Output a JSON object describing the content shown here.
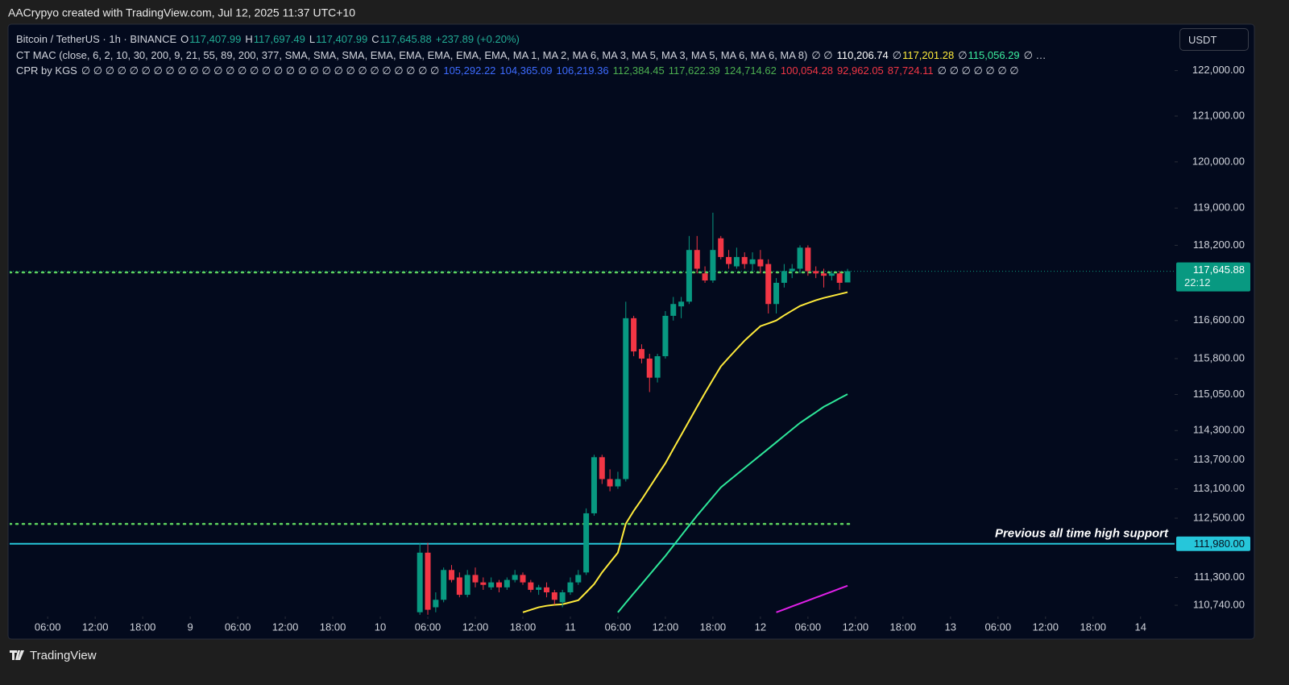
{
  "chart_data": {
    "type": "candlestick",
    "credit": "AACrypyo created with TradingView.com, Jul 12, 2025 11:37 UTC+10",
    "currency": "USDT",
    "brand": "TradingView",
    "legend": [
      {
        "items": [
          {
            "text": "Bitcoin / TetherUS · 1h · BINANCE",
            "color": "#d1d4dc"
          },
          {
            "text": "O",
            "color": "#d1d4dc"
          },
          {
            "text": "117,407.99",
            "color": "#22ab94"
          },
          {
            "text": "H",
            "color": "#d1d4dc"
          },
          {
            "text": "117,697.49",
            "color": "#22ab94"
          },
          {
            "text": "L",
            "color": "#d1d4dc"
          },
          {
            "text": "117,407.99",
            "color": "#22ab94"
          },
          {
            "text": "C",
            "color": "#d1d4dc"
          },
          {
            "text": "117,645.88",
            "color": "#22ab94"
          },
          {
            "text": "+237.89 (+0.20%)",
            "color": "#22ab94"
          }
        ]
      },
      {
        "items": [
          {
            "text": "CT MAC (close, 6, 2, 10, 30, 200, 9, 21, 55, 89, 200, 377, SMA, SMA, SMA, EMA, EMA, EMA, EMA, EMA, MA 1, MA 2, MA 6, MA 3, MA 5, MA 3, MA 5, MA 6, MA 6, MA 8)",
            "color": "#d1d4dc"
          },
          {
            "text": "∅ ∅",
            "color": "#d1d4dc"
          },
          {
            "text": "110,206.74",
            "color": "#ffffff"
          },
          {
            "text": "∅",
            "color": "#d1d4dc"
          },
          {
            "text": "117,201.28",
            "color": "#ffeb3b"
          },
          {
            "text": "∅",
            "color": "#d1d4dc"
          },
          {
            "text": "115,056.29",
            "color": "#3cf0a0"
          },
          {
            "text": "∅ …",
            "color": "#d1d4dc"
          }
        ]
      },
      {
        "items": [
          {
            "text": "CPR by KGS",
            "color": "#d1d4dc"
          },
          {
            "text": "∅ ∅ ∅ ∅ ∅ ∅ ∅ ∅ ∅ ∅ ∅ ∅ ∅ ∅ ∅ ∅ ∅ ∅ ∅ ∅ ∅ ∅ ∅ ∅ ∅ ∅ ∅ ∅ ∅ ∅",
            "color": "#d1d4dc"
          },
          {
            "text": "105,292.22",
            "color": "#3d6bff"
          },
          {
            "text": "104,365.09",
            "color": "#3d6bff"
          },
          {
            "text": "106,219.36",
            "color": "#3d6bff"
          },
          {
            "text": "112,384.45",
            "color": "#4caf50"
          },
          {
            "text": "117,622.39",
            "color": "#4caf50"
          },
          {
            "text": "124,714.62",
            "color": "#4caf50"
          },
          {
            "text": "100,054.28",
            "color": "#f23645"
          },
          {
            "text": "92,962.05",
            "color": "#f23645"
          },
          {
            "text": "87,724.11",
            "color": "#f23645"
          },
          {
            "text": "∅ ∅ ∅ ∅ ∅ ∅ ∅",
            "color": "#d1d4dc"
          }
        ]
      }
    ],
    "x": [
      "2025-07-10T05:00",
      "2025-07-10T06:00",
      "2025-07-10T07:00",
      "2025-07-10T08:00",
      "2025-07-10T09:00",
      "2025-07-10T10:00",
      "2025-07-10T11:00",
      "2025-07-10T12:00",
      "2025-07-10T13:00",
      "2025-07-10T14:00",
      "2025-07-10T15:00",
      "2025-07-10T16:00",
      "2025-07-10T17:00",
      "2025-07-10T18:00",
      "2025-07-10T19:00",
      "2025-07-10T20:00",
      "2025-07-10T21:00",
      "2025-07-10T22:00",
      "2025-07-10T23:00",
      "2025-07-11T00:00",
      "2025-07-11T01:00",
      "2025-07-11T02:00",
      "2025-07-11T03:00",
      "2025-07-11T04:00",
      "2025-07-11T05:00",
      "2025-07-11T06:00",
      "2025-07-11T07:00",
      "2025-07-11T08:00",
      "2025-07-11T09:00",
      "2025-07-11T10:00",
      "2025-07-11T11:00",
      "2025-07-11T12:00",
      "2025-07-11T13:00",
      "2025-07-11T14:00",
      "2025-07-11T15:00",
      "2025-07-11T16:00",
      "2025-07-11T17:00",
      "2025-07-11T18:00",
      "2025-07-11T19:00",
      "2025-07-11T20:00",
      "2025-07-11T21:00",
      "2025-07-11T22:00",
      "2025-07-11T23:00",
      "2025-07-12T00:00",
      "2025-07-12T01:00",
      "2025-07-12T02:00",
      "2025-07-12T03:00",
      "2025-07-12T04:00",
      "2025-07-12T05:00",
      "2025-07-12T06:00",
      "2025-07-12T07:00",
      "2025-07-12T08:00",
      "2025-07-12T09:00",
      "2025-07-12T10:00",
      "2025-07-12T11:00"
    ],
    "open": [
      110600,
      111800,
      110700,
      110850,
      111450,
      111300,
      110950,
      111350,
      111200,
      111100,
      111200,
      111100,
      111250,
      111350,
      111200,
      111050,
      111100,
      111000,
      110800,
      111000,
      111200,
      111400,
      112600,
      113750,
      113300,
      113150,
      113300,
      116650,
      116000,
      115800,
      115400,
      115850,
      116700,
      116900,
      117000,
      118100,
      117600,
      117450,
      118350,
      117950,
      117750,
      117950,
      117800,
      117900,
      117800,
      116950,
      117400,
      117650,
      117700,
      118150,
      117650,
      117600,
      117550,
      117600,
      117407.99
    ],
    "high": [
      112000,
      112000,
      111000,
      111500,
      111550,
      111400,
      111450,
      111500,
      111300,
      111300,
      111250,
      111300,
      111450,
      111400,
      111250,
      111150,
      111200,
      111050,
      111050,
      111300,
      111450,
      112700,
      113800,
      113800,
      113500,
      113450,
      117000,
      116700,
      116100,
      115900,
      115900,
      116800,
      117100,
      117100,
      118400,
      118400,
      117750,
      118900,
      118400,
      118100,
      118150,
      118050,
      118050,
      118100,
      117900,
      117500,
      117800,
      117800,
      118200,
      118200,
      117750,
      117700,
      117650,
      117650,
      117697.49
    ],
    "low": [
      110550,
      110550,
      110600,
      110800,
      111200,
      110900,
      110900,
      111100,
      111050,
      111050,
      111000,
      111050,
      111200,
      111150,
      111000,
      110950,
      110900,
      110750,
      110700,
      110950,
      111150,
      111350,
      112550,
      113200,
      113050,
      113100,
      113250,
      115850,
      115700,
      115100,
      115300,
      115800,
      116600,
      116650,
      116950,
      117600,
      117400,
      117400,
      117900,
      117700,
      117700,
      117700,
      117650,
      117600,
      116750,
      116750,
      117300,
      117500,
      117600,
      117550,
      117500,
      117300,
      117450,
      117250,
      117407.99
    ],
    "close": [
      111800,
      110650,
      110850,
      111450,
      111250,
      110950,
      111350,
      111200,
      111150,
      111200,
      111100,
      111250,
      111350,
      111200,
      111050,
      111100,
      111000,
      110850,
      111000,
      111200,
      111350,
      112600,
      113750,
      113300,
      113150,
      113300,
      116650,
      115950,
      115800,
      115400,
      115850,
      116700,
      116950,
      117000,
      118100,
      117700,
      117450,
      118100,
      117950,
      117800,
      117950,
      117800,
      117900,
      117750,
      116950,
      117400,
      117650,
      117700,
      118150,
      117650,
      117600,
      117550,
      117600,
      117400,
      117645.88
    ],
    "up_color": "#089981",
    "down_color": "#f23645",
    "series": [
      {
        "color": "#ffeb3b",
        "values": [
          null,
          null,
          null,
          null,
          null,
          null,
          null,
          null,
          null,
          null,
          null,
          null,
          null,
          110598,
          110650,
          110700,
          110730,
          110750,
          110760,
          110800,
          110840,
          111000,
          111165,
          111400,
          111600,
          111800,
          112388,
          112650,
          112881,
          113130,
          113380,
          113626,
          113920,
          114208,
          114500,
          114793,
          115080,
          115360,
          115635,
          115820,
          116000,
          116177,
          116330,
          116482,
          116540,
          116601,
          116710,
          116810,
          116909,
          116970,
          117030,
          117079,
          117120,
          117160,
          117201.28
        ]
      },
      {
        "color": "#2ee89a",
        "values": [
          null,
          null,
          null,
          null,
          null,
          null,
          null,
          null,
          null,
          null,
          null,
          null,
          null,
          null,
          null,
          null,
          null,
          null,
          null,
          null,
          null,
          null,
          null,
          null,
          null,
          110598,
          110790,
          110980,
          111165,
          111355,
          111545,
          111734,
          111940,
          112145,
          112350,
          112554,
          112745,
          112937,
          113129,
          113262,
          113395,
          113527,
          113660,
          113792,
          113925,
          114058,
          114192,
          114325,
          114459,
          114570,
          114680,
          114793,
          114880,
          114970,
          115056.29
        ]
      },
      {
        "color": "#e020e8",
        "values": [
          null,
          null,
          null,
          null,
          null,
          null,
          null,
          null,
          null,
          null,
          null,
          null,
          null,
          null,
          null,
          null,
          null,
          null,
          null,
          null,
          null,
          null,
          null,
          null,
          null,
          null,
          null,
          null,
          null,
          null,
          null,
          null,
          null,
          null,
          null,
          null,
          null,
          null,
          null,
          null,
          null,
          null,
          null,
          null,
          null,
          110598,
          110657,
          110717,
          110776,
          110835,
          110895,
          110954,
          111014,
          111073,
          111132
        ]
      }
    ],
    "levels": [
      {
        "value": 117622.39,
        "color": "#5fd35f"
      },
      {
        "value": 112384.45,
        "color": "#5fd35f"
      }
    ],
    "support": {
      "value": 111980,
      "label": "111,980.00",
      "text": "Previous all time high support",
      "color": "#26c6da"
    },
    "last": {
      "value": 117645.88,
      "label": "117,645.88",
      "countdown": "22:12",
      "color": "#089981"
    },
    "xlim": [
      "2025-07-08T01:12",
      "2025-07-14T04:18"
    ],
    "xticks": [
      {
        "value": "2025-07-08T06:00",
        "label": "06:00"
      },
      {
        "value": "2025-07-08T12:00",
        "label": "12:00"
      },
      {
        "value": "2025-07-08T18:00",
        "label": "18:00"
      },
      {
        "value": "2025-07-09T00:00",
        "label": "9"
      },
      {
        "value": "2025-07-09T06:00",
        "label": "06:00"
      },
      {
        "value": "2025-07-09T12:00",
        "label": "12:00"
      },
      {
        "value": "2025-07-09T18:00",
        "label": "18:00"
      },
      {
        "value": "2025-07-10T00:00",
        "label": "10"
      },
      {
        "value": "2025-07-10T06:00",
        "label": "06:00"
      },
      {
        "value": "2025-07-10T12:00",
        "label": "12:00"
      },
      {
        "value": "2025-07-10T18:00",
        "label": "18:00"
      },
      {
        "value": "2025-07-11T00:00",
        "label": "11"
      },
      {
        "value": "2025-07-11T06:00",
        "label": "06:00"
      },
      {
        "value": "2025-07-11T12:00",
        "label": "12:00"
      },
      {
        "value": "2025-07-11T18:00",
        "label": "18:00"
      },
      {
        "value": "2025-07-12T00:00",
        "label": "12"
      },
      {
        "value": "2025-07-12T06:00",
        "label": "06:00"
      },
      {
        "value": "2025-07-12T12:00",
        "label": "12:00"
      },
      {
        "value": "2025-07-12T18:00",
        "label": "18:00"
      },
      {
        "value": "2025-07-13T00:00",
        "label": "13"
      },
      {
        "value": "2025-07-13T06:00",
        "label": "06:00"
      },
      {
        "value": "2025-07-13T12:00",
        "label": "12:00"
      },
      {
        "value": "2025-07-13T18:00",
        "label": "18:00"
      },
      {
        "value": "2025-07-14T00:00",
        "label": "14"
      }
    ],
    "ylim": [
      110515,
      123030
    ],
    "log_y": true,
    "yticks": [
      {
        "value": 122000,
        "label": "122,000.00"
      },
      {
        "value": 121000,
        "label": "121,000.00"
      },
      {
        "value": 120000,
        "label": "120,000.00"
      },
      {
        "value": 119000,
        "label": "119,000.00"
      },
      {
        "value": 118200,
        "label": "118,200.00"
      },
      {
        "value": 116600,
        "label": "116,600.00"
      },
      {
        "value": 115800,
        "label": "115,800.00"
      },
      {
        "value": 115050,
        "label": "115,050.00"
      },
      {
        "value": 114300,
        "label": "114,300.00"
      },
      {
        "value": 113700,
        "label": "113,700.00"
      },
      {
        "value": 113100,
        "label": "113,100.00"
      },
      {
        "value": 112500,
        "label": "112,500.00"
      },
      {
        "value": 111300,
        "label": "111,300.00"
      },
      {
        "value": 110740,
        "label": "110,740.00"
      }
    ]
  }
}
